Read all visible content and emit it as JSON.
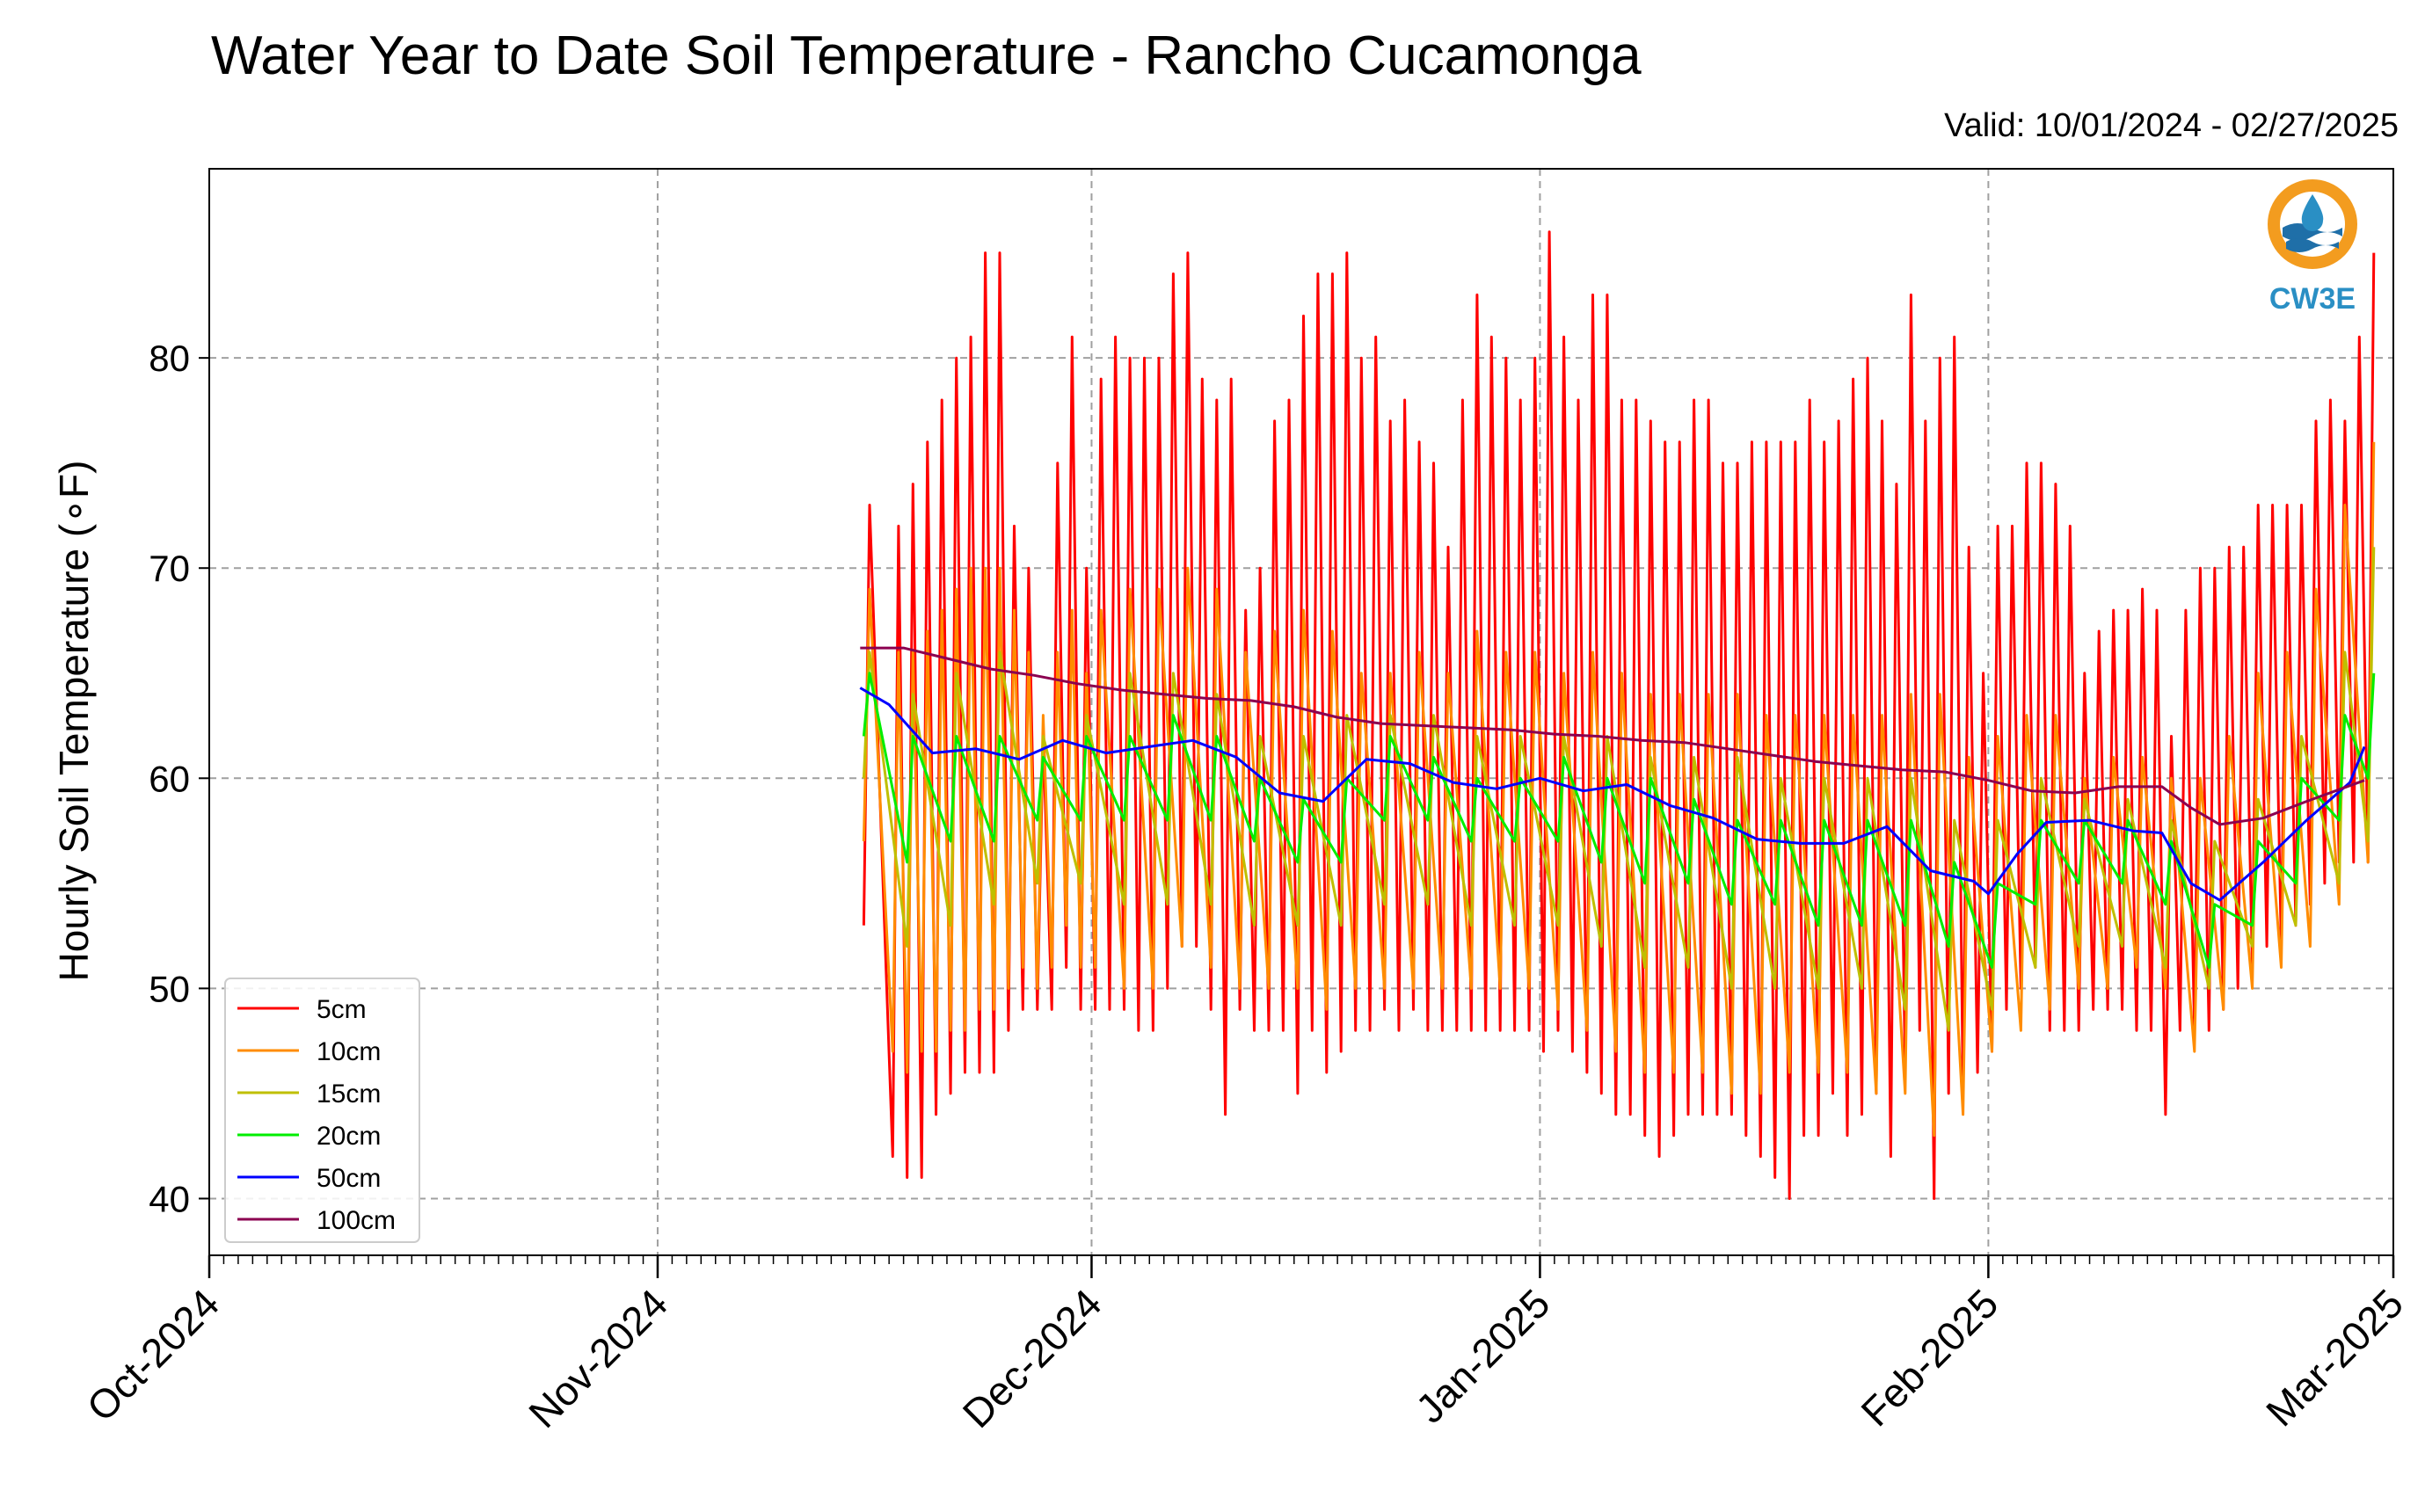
{
  "title": "Water Year to Date Soil Temperature - Rancho Cucamonga",
  "valid": "Valid: 10/01/2024 - 02/27/2025",
  "logo": {
    "text": "CW3E",
    "colors": {
      "ring": "#f39c1f",
      "wave": "#1f6fa8",
      "text": "#2a8fc4"
    }
  },
  "chart_data": {
    "type": "line",
    "ylabel": "Hourly Soil Temperature (∘F)",
    "x_ticks": [
      "Oct-2024",
      "Nov-2024",
      "Dec-2024",
      "Jan-2025",
      "Feb-2025",
      "Mar-2025"
    ],
    "x_tick_dates": [
      "2024-10-01",
      "2024-11-01",
      "2024-12-01",
      "2025-01-01",
      "2025-02-01",
      "2025-03-01"
    ],
    "xlim": [
      "2024-10-01",
      "2025-03-01"
    ],
    "ylim": [
      37.3,
      89.0
    ],
    "y_ticks": [
      40,
      50,
      60,
      70,
      80
    ],
    "grid": true,
    "legend_position": "lower-left",
    "series": [
      {
        "name": "5cm",
        "color": "#ff0000",
        "kind": "daily_min_max",
        "dates": [
          "2024-11-15",
          "2024-11-17",
          "2024-11-18",
          "2024-11-19",
          "2024-11-20",
          "2024-11-21",
          "2024-11-22",
          "2024-11-23",
          "2024-11-24",
          "2024-11-25",
          "2024-11-26",
          "2024-11-27",
          "2024-11-28",
          "2024-11-29",
          "2024-11-30",
          "2024-12-01",
          "2024-12-02",
          "2024-12-03",
          "2024-12-04",
          "2024-12-05",
          "2024-12-06",
          "2024-12-07",
          "2024-12-08",
          "2024-12-09",
          "2024-12-10",
          "2024-12-11",
          "2024-12-12",
          "2024-12-13",
          "2024-12-14",
          "2024-12-15",
          "2024-12-16",
          "2024-12-17",
          "2024-12-18",
          "2024-12-19",
          "2024-12-20",
          "2024-12-21",
          "2024-12-22",
          "2024-12-23",
          "2024-12-24",
          "2024-12-25",
          "2024-12-26",
          "2024-12-27",
          "2024-12-28",
          "2024-12-29",
          "2024-12-30",
          "2024-12-31",
          "2025-01-01",
          "2025-01-02",
          "2025-01-03",
          "2025-01-04",
          "2025-01-05",
          "2025-01-06",
          "2025-01-07",
          "2025-01-08",
          "2025-01-09",
          "2025-01-10",
          "2025-01-11",
          "2025-01-12",
          "2025-01-13",
          "2025-01-14",
          "2025-01-15",
          "2025-01-16",
          "2025-01-17",
          "2025-01-18",
          "2025-01-19",
          "2025-01-20",
          "2025-01-21",
          "2025-01-22",
          "2025-01-23",
          "2025-01-24",
          "2025-01-25",
          "2025-01-26",
          "2025-01-27",
          "2025-01-28",
          "2025-01-29",
          "2025-01-30",
          "2025-01-31",
          "2025-02-01",
          "2025-02-02",
          "2025-02-03",
          "2025-02-04",
          "2025-02-05",
          "2025-02-06",
          "2025-02-07",
          "2025-02-08",
          "2025-02-09",
          "2025-02-10",
          "2025-02-11",
          "2025-02-12",
          "2025-02-13",
          "2025-02-14",
          "2025-02-15",
          "2025-02-16",
          "2025-02-17",
          "2025-02-18",
          "2025-02-19",
          "2025-02-20",
          "2025-02-21",
          "2025-02-22",
          "2025-02-23",
          "2025-02-24",
          "2025-02-25",
          "2025-02-26",
          "2025-02-27"
        ],
        "max": [
          73,
          72,
          74,
          76,
          78,
          80,
          81,
          85,
          85,
          72,
          70,
          62,
          75,
          81,
          70,
          79,
          81,
          80,
          80,
          80,
          84,
          85,
          79,
          78,
          79,
          68,
          70,
          77,
          78,
          82,
          84,
          84,
          85,
          80,
          81,
          77,
          78,
          76,
          75,
          71,
          78,
          83,
          81,
          80,
          78,
          80,
          86,
          81,
          78,
          83,
          83,
          78,
          78,
          77,
          76,
          76,
          78,
          78,
          75,
          75,
          76,
          76,
          76,
          76,
          78,
          76,
          77,
          79,
          80,
          77,
          74,
          83,
          77,
          80,
          81,
          71,
          65,
          72,
          72,
          75,
          75,
          74,
          72,
          65,
          67,
          68,
          68,
          69,
          68,
          62,
          68,
          70,
          70,
          71,
          71,
          73,
          73,
          73,
          73,
          77,
          78,
          77,
          81,
          85
        ],
        "min": [
          53,
          42,
          41,
          41,
          44,
          45,
          46,
          46,
          46,
          48,
          49,
          49,
          49,
          51,
          49,
          49,
          49,
          49,
          48,
          48,
          50,
          52,
          52,
          49,
          44,
          49,
          48,
          48,
          48,
          45,
          48,
          46,
          47,
          48,
          48,
          49,
          48,
          49,
          48,
          48,
          48,
          48,
          48,
          48,
          48,
          48,
          47,
          48,
          47,
          46,
          45,
          44,
          44,
          43,
          42,
          43,
          44,
          44,
          44,
          44,
          43,
          42,
          41,
          40,
          43,
          43,
          45,
          43,
          44,
          45,
          42,
          46,
          48,
          40,
          45,
          45,
          46,
          47,
          49,
          50,
          51,
          48,
          48,
          48,
          49,
          49,
          49,
          48,
          48,
          44,
          48,
          48,
          48,
          49,
          50,
          51,
          52,
          52,
          53,
          54,
          55,
          56,
          56,
          56
        ]
      },
      {
        "name": "10cm",
        "color": "#ff8c00",
        "kind": "daily_min_max",
        "dates": [
          "2024-11-15",
          "2024-11-17",
          "2024-11-18",
          "2024-11-19",
          "2024-11-20",
          "2024-11-21",
          "2024-11-22",
          "2024-11-23",
          "2024-11-24",
          "2024-11-25",
          "2024-11-26",
          "2024-11-27",
          "2024-11-28",
          "2024-11-29",
          "2024-11-30",
          "2024-12-01",
          "2024-12-03",
          "2024-12-05",
          "2024-12-07",
          "2024-12-09",
          "2024-12-11",
          "2024-12-13",
          "2024-12-15",
          "2024-12-17",
          "2024-12-19",
          "2024-12-21",
          "2024-12-23",
          "2024-12-25",
          "2024-12-27",
          "2024-12-29",
          "2024-12-31",
          "2025-01-02",
          "2025-01-04",
          "2025-01-06",
          "2025-01-08",
          "2025-01-10",
          "2025-01-12",
          "2025-01-14",
          "2025-01-16",
          "2025-01-18",
          "2025-01-20",
          "2025-01-22",
          "2025-01-24",
          "2025-01-26",
          "2025-01-28",
          "2025-01-30",
          "2025-02-01",
          "2025-02-03",
          "2025-02-05",
          "2025-02-07",
          "2025-02-09",
          "2025-02-11",
          "2025-02-13",
          "2025-02-15",
          "2025-02-17",
          "2025-02-19",
          "2025-02-21",
          "2025-02-23",
          "2025-02-25",
          "2025-02-27"
        ],
        "max": [
          69,
          66,
          66,
          67,
          68,
          69,
          70,
          70,
          70,
          68,
          66,
          63,
          66,
          68,
          65,
          68,
          69,
          69,
          70,
          69,
          66,
          67,
          68,
          67,
          65,
          65,
          66,
          65,
          67,
          66,
          66,
          65,
          66,
          65,
          64,
          64,
          64,
          64,
          63,
          63,
          63,
          63,
          63,
          64,
          64,
          61,
          62,
          63,
          63,
          60,
          61,
          61,
          60,
          60,
          62,
          65,
          66,
          69,
          73,
          76
        ],
        "min": [
          57,
          47,
          46,
          47,
          47,
          48,
          48,
          49,
          49,
          50,
          51,
          50,
          51,
          53,
          51,
          51,
          50,
          50,
          52,
          51,
          50,
          50,
          50,
          49,
          50,
          50,
          50,
          50,
          50,
          50,
          50,
          49,
          48,
          47,
          46,
          46,
          46,
          45,
          45,
          46,
          46,
          46,
          45,
          45,
          43,
          44,
          47,
          48,
          49,
          50,
          50,
          51,
          50,
          47,
          49,
          50,
          51,
          52,
          54,
          56
        ]
      },
      {
        "name": "15cm",
        "color": "#bfbf00",
        "kind": "daily_min_max",
        "dates": [
          "2024-11-15",
          "2024-11-18",
          "2024-11-21",
          "2024-11-24",
          "2024-11-27",
          "2024-11-30",
          "2024-12-03",
          "2024-12-06",
          "2024-12-09",
          "2024-12-12",
          "2024-12-15",
          "2024-12-18",
          "2024-12-21",
          "2024-12-24",
          "2024-12-27",
          "2024-12-30",
          "2025-01-02",
          "2025-01-05",
          "2025-01-08",
          "2025-01-11",
          "2025-01-14",
          "2025-01-17",
          "2025-01-20",
          "2025-01-23",
          "2025-01-26",
          "2025-01-29",
          "2025-02-01",
          "2025-02-04",
          "2025-02-07",
          "2025-02-10",
          "2025-02-13",
          "2025-02-16",
          "2025-02-19",
          "2025-02-22",
          "2025-02-25",
          "2025-02-27"
        ],
        "max": [
          66,
          64,
          65,
          66,
          62,
          63,
          65,
          65,
          64,
          62,
          62,
          63,
          63,
          63,
          62,
          62,
          62,
          62,
          61,
          61,
          61,
          60,
          60,
          60,
          60,
          58,
          58,
          60,
          59,
          59,
          58,
          57,
          59,
          62,
          66,
          71
        ],
        "min": [
          60,
          52,
          53,
          54,
          55,
          55,
          54,
          54,
          54,
          53,
          53,
          53,
          54,
          54,
          53,
          53,
          53,
          52,
          51,
          51,
          50,
          50,
          50,
          50,
          49,
          48,
          49,
          51,
          52,
          52,
          51,
          50,
          52,
          53,
          55,
          57
        ]
      },
      {
        "name": "20cm",
        "color": "#00ee00",
        "kind": "daily_min_max",
        "dates": [
          "2024-11-15",
          "2024-11-18",
          "2024-11-21",
          "2024-11-24",
          "2024-11-27",
          "2024-11-30",
          "2024-12-03",
          "2024-12-06",
          "2024-12-09",
          "2024-12-12",
          "2024-12-15",
          "2024-12-18",
          "2024-12-21",
          "2024-12-24",
          "2024-12-27",
          "2024-12-30",
          "2025-01-02",
          "2025-01-05",
          "2025-01-08",
          "2025-01-11",
          "2025-01-14",
          "2025-01-17",
          "2025-01-20",
          "2025-01-23",
          "2025-01-26",
          "2025-01-29",
          "2025-02-01",
          "2025-02-04",
          "2025-02-07",
          "2025-02-10",
          "2025-02-13",
          "2025-02-16",
          "2025-02-19",
          "2025-02-22",
          "2025-02-25",
          "2025-02-27"
        ],
        "max": [
          65,
          62,
          62,
          62,
          61,
          62,
          62,
          63,
          62,
          60,
          59,
          60,
          62,
          61,
          60,
          60,
          61,
          60,
          60,
          59,
          58,
          58,
          58,
          58,
          58,
          56,
          55,
          58,
          58,
          58,
          57,
          54,
          57,
          60,
          63,
          65
        ],
        "min": [
          62,
          56,
          57,
          57,
          58,
          58,
          58,
          58,
          58,
          57,
          56,
          56,
          58,
          58,
          57,
          57,
          57,
          56,
          55,
          55,
          54,
          54,
          53,
          53,
          53,
          52,
          51,
          54,
          55,
          55,
          54,
          51,
          53,
          55,
          58,
          60
        ]
      },
      {
        "name": "50cm",
        "color": "#0000ff",
        "kind": "line",
        "dates": [
          "2024-11-15",
          "2024-11-17",
          "2024-11-20",
          "2024-11-23",
          "2024-11-26",
          "2024-11-29",
          "2024-12-02",
          "2024-12-05",
          "2024-12-08",
          "2024-12-11",
          "2024-12-14",
          "2024-12-17",
          "2024-12-20",
          "2024-12-23",
          "2024-12-26",
          "2024-12-29",
          "2025-01-01",
          "2025-01-04",
          "2025-01-07",
          "2025-01-10",
          "2025-01-13",
          "2025-01-16",
          "2025-01-19",
          "2025-01-22",
          "2025-01-25",
          "2025-01-28",
          "2025-01-31",
          "2025-02-01",
          "2025-02-03",
          "2025-02-05",
          "2025-02-08",
          "2025-02-11",
          "2025-02-13",
          "2025-02-15",
          "2025-02-17",
          "2025-02-20",
          "2025-02-23",
          "2025-02-26",
          "2025-02-27"
        ],
        "y": [
          64.3,
          63.5,
          61.2,
          61.4,
          60.9,
          61.8,
          61.2,
          61.5,
          61.8,
          61.0,
          59.3,
          58.9,
          60.9,
          60.7,
          59.8,
          59.5,
          60.0,
          59.4,
          59.7,
          58.7,
          58.1,
          57.1,
          56.9,
          56.9,
          57.7,
          55.6,
          55.1,
          54.5,
          56.4,
          57.9,
          58.0,
          57.5,
          57.4,
          55.0,
          54.2,
          56.0,
          58.0,
          59.8,
          61.5
        ]
      },
      {
        "name": "100cm",
        "color": "#8b0050",
        "kind": "line",
        "dates": [
          "2024-11-15",
          "2024-11-18",
          "2024-11-21",
          "2024-11-24",
          "2024-11-27",
          "2024-11-30",
          "2024-12-03",
          "2024-12-06",
          "2024-12-09",
          "2024-12-12",
          "2024-12-15",
          "2024-12-18",
          "2024-12-21",
          "2024-12-24",
          "2024-12-27",
          "2024-12-30",
          "2025-01-02",
          "2025-01-05",
          "2025-01-08",
          "2025-01-11",
          "2025-01-14",
          "2025-01-17",
          "2025-01-20",
          "2025-01-23",
          "2025-01-26",
          "2025-01-29",
          "2025-02-01",
          "2025-02-04",
          "2025-02-07",
          "2025-02-10",
          "2025-02-13",
          "2025-02-15",
          "2025-02-17",
          "2025-02-20",
          "2025-02-23",
          "2025-02-27"
        ],
        "y": [
          66.2,
          66.2,
          65.7,
          65.2,
          64.9,
          64.5,
          64.2,
          64.0,
          63.8,
          63.7,
          63.4,
          62.9,
          62.6,
          62.5,
          62.4,
          62.3,
          62.1,
          62.0,
          61.8,
          61.7,
          61.4,
          61.1,
          60.8,
          60.6,
          60.4,
          60.3,
          59.9,
          59.4,
          59.3,
          59.6,
          59.6,
          58.6,
          57.8,
          58.1,
          58.9,
          59.9
        ]
      }
    ]
  }
}
